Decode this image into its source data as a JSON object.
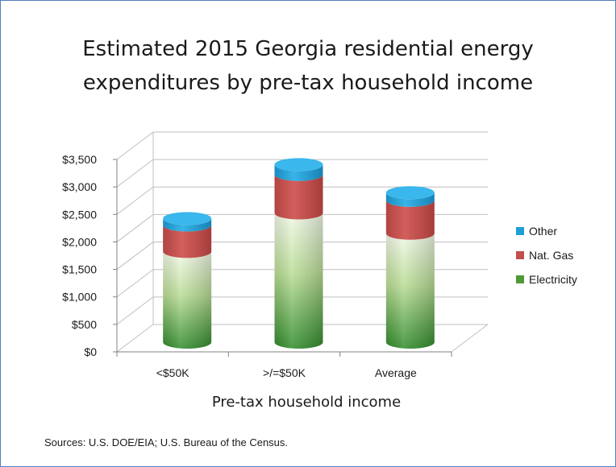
{
  "title_lines": [
    "Estimated 2015 Georgia residential energy",
    "expenditures by pre-tax household income"
  ],
  "source": "Sources: U.S. DOE/EIA; U.S. Bureau of the Census.",
  "colors": {
    "Electricity": "#4e9a37",
    "Nat. Gas": "#c0504d",
    "Other": "#1e9fd6",
    "frame": "#4f81bd"
  },
  "chart_data": {
    "type": "bar",
    "stacked": true,
    "style": "3d-cylinder",
    "title": "Estimated 2015 Georgia residential energy expenditures by pre-tax household income",
    "xlabel": "Pre-tax household income",
    "ylabel": "",
    "categories": [
      "<$50K",
      ">/=$50K",
      "Average"
    ],
    "series": [
      {
        "name": "Electricity",
        "values": [
          1650,
          2350,
          1980
        ]
      },
      {
        "name": "Nat. Gas",
        "values": [
          480,
          700,
          600
        ]
      },
      {
        "name": "Other",
        "values": [
          120,
          180,
          140
        ]
      }
    ],
    "ylim": [
      0,
      3500
    ],
    "yticks": [
      "$0",
      "$500",
      "$1,000",
      "$1,500",
      "$2,000",
      "$2,500",
      "$3,000",
      "$3,500"
    ],
    "legend_order": [
      "Other",
      "Nat. Gas",
      "Electricity"
    ],
    "legend_position": "right",
    "grid": true
  }
}
